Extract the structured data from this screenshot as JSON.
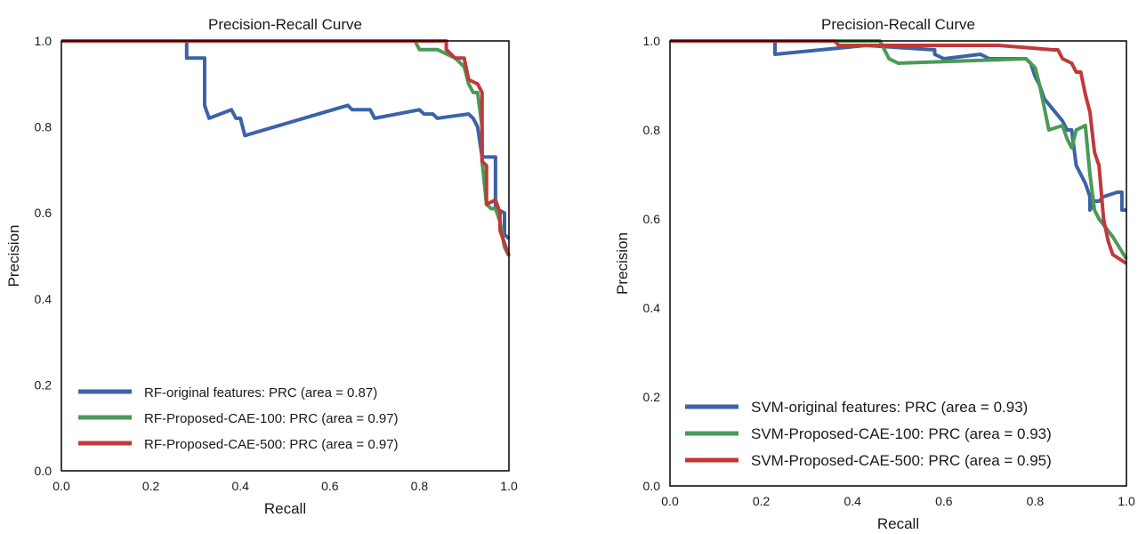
{
  "colors": {
    "blue": "#3b63a8",
    "green": "#4a9a55",
    "red": "#c0393b",
    "axis": "#000000",
    "text": "#1a1a1a"
  },
  "chart_data": [
    {
      "type": "line",
      "title": "Precision-Recall Curve",
      "xlabel": "Recall",
      "ylabel": "Precision",
      "xlim": [
        0.0,
        1.0
      ],
      "ylim": [
        0.0,
        1.0
      ],
      "xticks": [
        "0.0",
        "0.2",
        "0.4",
        "0.6",
        "0.8",
        "1.0"
      ],
      "yticks": [
        "0.0",
        "0.2",
        "0.4",
        "0.6",
        "0.8",
        "1.0"
      ],
      "grid": false,
      "legend_position": "lower-left",
      "series": [
        {
          "name": "RF-original features: PRC (area = 0.87)",
          "color": "#3b63a8",
          "points": [
            [
              0.0,
              1.0
            ],
            [
              0.28,
              1.0
            ],
            [
              0.28,
              0.96
            ],
            [
              0.32,
              0.96
            ],
            [
              0.32,
              0.85
            ],
            [
              0.33,
              0.82
            ],
            [
              0.38,
              0.84
            ],
            [
              0.39,
              0.82
            ],
            [
              0.4,
              0.82
            ],
            [
              0.41,
              0.78
            ],
            [
              0.64,
              0.85
            ],
            [
              0.65,
              0.84
            ],
            [
              0.69,
              0.84
            ],
            [
              0.7,
              0.82
            ],
            [
              0.8,
              0.84
            ],
            [
              0.81,
              0.83
            ],
            [
              0.83,
              0.83
            ],
            [
              0.84,
              0.82
            ],
            [
              0.91,
              0.83
            ],
            [
              0.92,
              0.82
            ],
            [
              0.93,
              0.8
            ],
            [
              0.94,
              0.73
            ],
            [
              0.97,
              0.73
            ],
            [
              0.97,
              0.61
            ],
            [
              0.99,
              0.6
            ],
            [
              0.99,
              0.55
            ],
            [
              1.0,
              0.54
            ]
          ]
        },
        {
          "name": "RF-Proposed-CAE-100: PRC (area = 0.97)",
          "color": "#4a9a55",
          "points": [
            [
              0.0,
              1.0
            ],
            [
              0.79,
              1.0
            ],
            [
              0.8,
              0.98
            ],
            [
              0.84,
              0.98
            ],
            [
              0.88,
              0.96
            ],
            [
              0.9,
              0.94
            ],
            [
              0.91,
              0.9
            ],
            [
              0.92,
              0.88
            ],
            [
              0.93,
              0.88
            ],
            [
              0.94,
              0.8
            ],
            [
              0.94,
              0.72
            ],
            [
              0.95,
              0.62
            ],
            [
              0.96,
              0.61
            ],
            [
              0.97,
              0.61
            ],
            [
              0.98,
              0.58
            ],
            [
              0.99,
              0.52
            ],
            [
              1.0,
              0.5
            ]
          ]
        },
        {
          "name": "RF-Proposed-CAE-500: PRC (area = 0.97)",
          "color": "#c0393b",
          "points": [
            [
              0.0,
              1.0
            ],
            [
              0.86,
              1.0
            ],
            [
              0.86,
              0.98
            ],
            [
              0.87,
              0.97
            ],
            [
              0.88,
              0.96
            ],
            [
              0.9,
              0.96
            ],
            [
              0.91,
              0.91
            ],
            [
              0.93,
              0.9
            ],
            [
              0.94,
              0.88
            ],
            [
              0.94,
              0.72
            ],
            [
              0.95,
              0.71
            ],
            [
              0.95,
              0.62
            ],
            [
              0.97,
              0.63
            ],
            [
              0.98,
              0.6
            ],
            [
              0.98,
              0.56
            ],
            [
              1.0,
              0.5
            ]
          ]
        }
      ]
    },
    {
      "type": "line",
      "title": "Precision-Recall Curve",
      "xlabel": "Recall",
      "ylabel": "Precision",
      "xlim": [
        0.0,
        1.0
      ],
      "ylim": [
        0.0,
        1.0
      ],
      "xticks": [
        "0.0",
        "0.2",
        "0.4",
        "0.6",
        "0.8",
        "1.0"
      ],
      "yticks": [
        "0.0",
        "0.2",
        "0.4",
        "0.6",
        "0.8",
        "1.0"
      ],
      "grid": false,
      "legend_position": "lower-left",
      "series": [
        {
          "name": "SVM-original features: PRC (area = 0.93)",
          "color": "#3b63a8",
          "points": [
            [
              0.0,
              1.0
            ],
            [
              0.23,
              1.0
            ],
            [
              0.23,
              0.97
            ],
            [
              0.43,
              0.99
            ],
            [
              0.58,
              0.98
            ],
            [
              0.58,
              0.97
            ],
            [
              0.6,
              0.96
            ],
            [
              0.68,
              0.97
            ],
            [
              0.7,
              0.96
            ],
            [
              0.78,
              0.96
            ],
            [
              0.79,
              0.95
            ],
            [
              0.8,
              0.92
            ],
            [
              0.81,
              0.9
            ],
            [
              0.82,
              0.87
            ],
            [
              0.86,
              0.82
            ],
            [
              0.87,
              0.8
            ],
            [
              0.88,
              0.8
            ],
            [
              0.89,
              0.72
            ],
            [
              0.9,
              0.7
            ],
            [
              0.91,
              0.68
            ],
            [
              0.92,
              0.65
            ],
            [
              0.92,
              0.62
            ],
            [
              0.93,
              0.64
            ],
            [
              0.94,
              0.64
            ],
            [
              0.95,
              0.65
            ],
            [
              0.98,
              0.66
            ],
            [
              0.99,
              0.66
            ],
            [
              0.99,
              0.62
            ],
            [
              1.0,
              0.62
            ]
          ]
        },
        {
          "name": "SVM-Proposed-CAE-100: PRC (area = 0.93)",
          "color": "#4a9a55",
          "points": [
            [
              0.0,
              1.0
            ],
            [
              0.46,
              1.0
            ],
            [
              0.48,
              0.96
            ],
            [
              0.5,
              0.95
            ],
            [
              0.78,
              0.96
            ],
            [
              0.8,
              0.94
            ],
            [
              0.81,
              0.9
            ],
            [
              0.82,
              0.85
            ],
            [
              0.83,
              0.8
            ],
            [
              0.86,
              0.81
            ],
            [
              0.87,
              0.78
            ],
            [
              0.88,
              0.76
            ],
            [
              0.89,
              0.8
            ],
            [
              0.91,
              0.81
            ],
            [
              0.92,
              0.7
            ],
            [
              0.93,
              0.62
            ],
            [
              0.94,
              0.6
            ],
            [
              0.97,
              0.56
            ],
            [
              1.0,
              0.51
            ]
          ]
        },
        {
          "name": "SVM-Proposed-CAE-500: PRC (area = 0.95)",
          "color": "#c0393b",
          "points": [
            [
              0.0,
              1.0
            ],
            [
              0.36,
              1.0
            ],
            [
              0.37,
              0.99
            ],
            [
              0.65,
              0.99
            ],
            [
              0.72,
              0.99
            ],
            [
              0.84,
              0.98
            ],
            [
              0.85,
              0.98
            ],
            [
              0.86,
              0.96
            ],
            [
              0.88,
              0.95
            ],
            [
              0.89,
              0.93
            ],
            [
              0.9,
              0.93
            ],
            [
              0.91,
              0.88
            ],
            [
              0.92,
              0.84
            ],
            [
              0.93,
              0.75
            ],
            [
              0.94,
              0.72
            ],
            [
              0.95,
              0.6
            ],
            [
              0.96,
              0.55
            ],
            [
              0.97,
              0.52
            ],
            [
              1.0,
              0.5
            ]
          ]
        }
      ]
    }
  ]
}
